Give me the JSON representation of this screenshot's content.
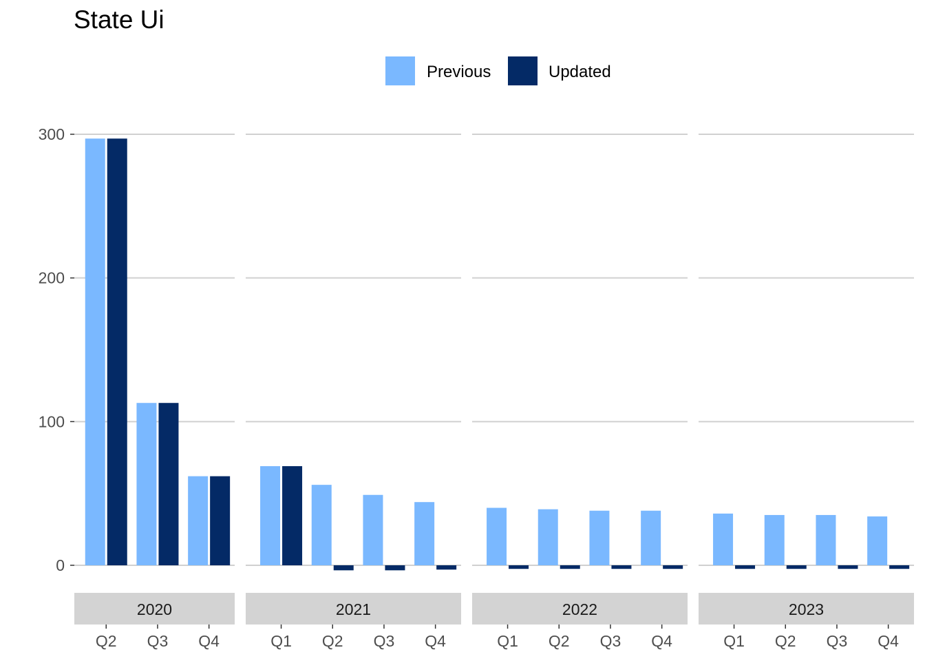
{
  "chart_data": {
    "type": "bar",
    "title": "State Ui",
    "xlabel": "",
    "ylabel": "",
    "ylim": [
      -10,
      300
    ],
    "yticks": [
      0,
      100,
      200,
      300
    ],
    "grid": true,
    "legend_position": "top",
    "series": [
      {
        "name": "Previous",
        "color": "#7ab8ff"
      },
      {
        "name": "Updated",
        "color": "#042a66"
      }
    ],
    "panels": [
      {
        "label": "2020",
        "categories": [
          "Q2",
          "Q3",
          "Q4"
        ],
        "previous": [
          297,
          113,
          62
        ],
        "updated": [
          297,
          113,
          62
        ]
      },
      {
        "label": "2021",
        "categories": [
          "Q1",
          "Q2",
          "Q3",
          "Q4"
        ],
        "previous": [
          69,
          56,
          49,
          44
        ],
        "updated": [
          69,
          -3.5,
          -3.5,
          -3
        ]
      },
      {
        "label": "2022",
        "categories": [
          "Q1",
          "Q2",
          "Q3",
          "Q4"
        ],
        "previous": [
          40,
          39,
          38,
          38
        ],
        "updated": [
          -2.5,
          -2.5,
          -2.5,
          -2.5
        ]
      },
      {
        "label": "2023",
        "categories": [
          "Q1",
          "Q2",
          "Q3",
          "Q4"
        ],
        "previous": [
          36,
          35,
          35,
          34
        ],
        "updated": [
          -2.5,
          -2.5,
          -2.5,
          -2.5
        ]
      }
    ]
  }
}
